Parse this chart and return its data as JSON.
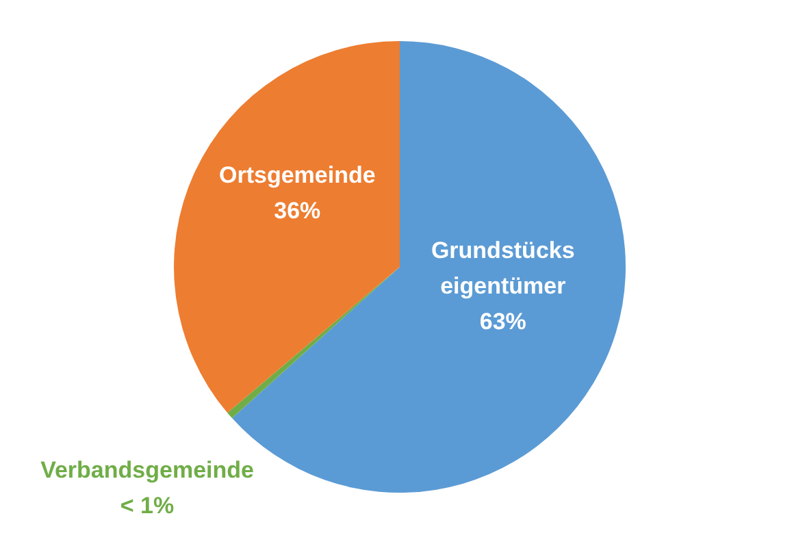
{
  "chart_data": {
    "type": "pie",
    "categories": [
      "Grundstücks eigentümer",
      "Verbandsgemeinde",
      "Ortsgemeinde"
    ],
    "values": [
      63,
      0.5,
      36
    ],
    "colors": [
      "#5b9bd5",
      "#70ad47",
      "#ed7d31"
    ],
    "value_labels": [
      "63%",
      "< 1%",
      "36%"
    ]
  }
}
